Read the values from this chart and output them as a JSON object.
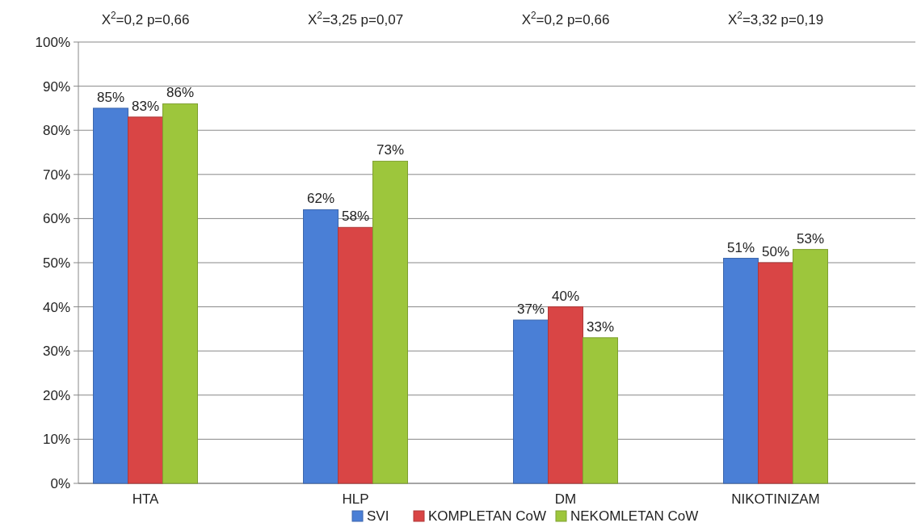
{
  "chart_data": {
    "type": "bar",
    "categories": [
      "HTA",
      "HLP",
      "DM",
      "NIKOTINIZAM"
    ],
    "series": [
      {
        "name": "SVI",
        "color": "#4a7fd6",
        "values": [
          85,
          62,
          37,
          51
        ],
        "value_labels": [
          "85%",
          "62%",
          "37%",
          "51%"
        ]
      },
      {
        "name": "KOMPLETAN CoW",
        "color": "#d94545",
        "values": [
          83,
          58,
          40,
          50
        ],
        "value_labels": [
          "83%",
          "58%",
          "40%",
          "50%"
        ]
      },
      {
        "name": "NEKOMLETAN CoW",
        "color": "#9dc63c",
        "values": [
          86,
          73,
          33,
          53
        ],
        "value_labels": [
          "86%",
          "73%",
          "33%",
          "53%"
        ]
      }
    ],
    "ylim": [
      0,
      100
    ],
    "yticks": [
      {
        "value": 0,
        "label": "0%"
      },
      {
        "value": 10,
        "label": "10%"
      },
      {
        "value": 20,
        "label": "20%"
      },
      {
        "value": 30,
        "label": "30%"
      },
      {
        "value": 40,
        "label": "40%"
      },
      {
        "value": 50,
        "label": "50%"
      },
      {
        "value": 60,
        "label": "60%"
      },
      {
        "value": 70,
        "label": "70%"
      },
      {
        "value": 80,
        "label": "80%"
      },
      {
        "value": 90,
        "label": "90%"
      },
      {
        "value": 100,
        "label": "100%"
      }
    ],
    "grid": "y",
    "legend": "bottom",
    "annotations": [
      "X$^{2}$=0,2 p=0,66",
      "X$^{2}$=3,25 p=0,07",
      "X$^{2}$=0,2 p=0,66",
      "X$^{2}$=3,32 p=0,19"
    ]
  }
}
